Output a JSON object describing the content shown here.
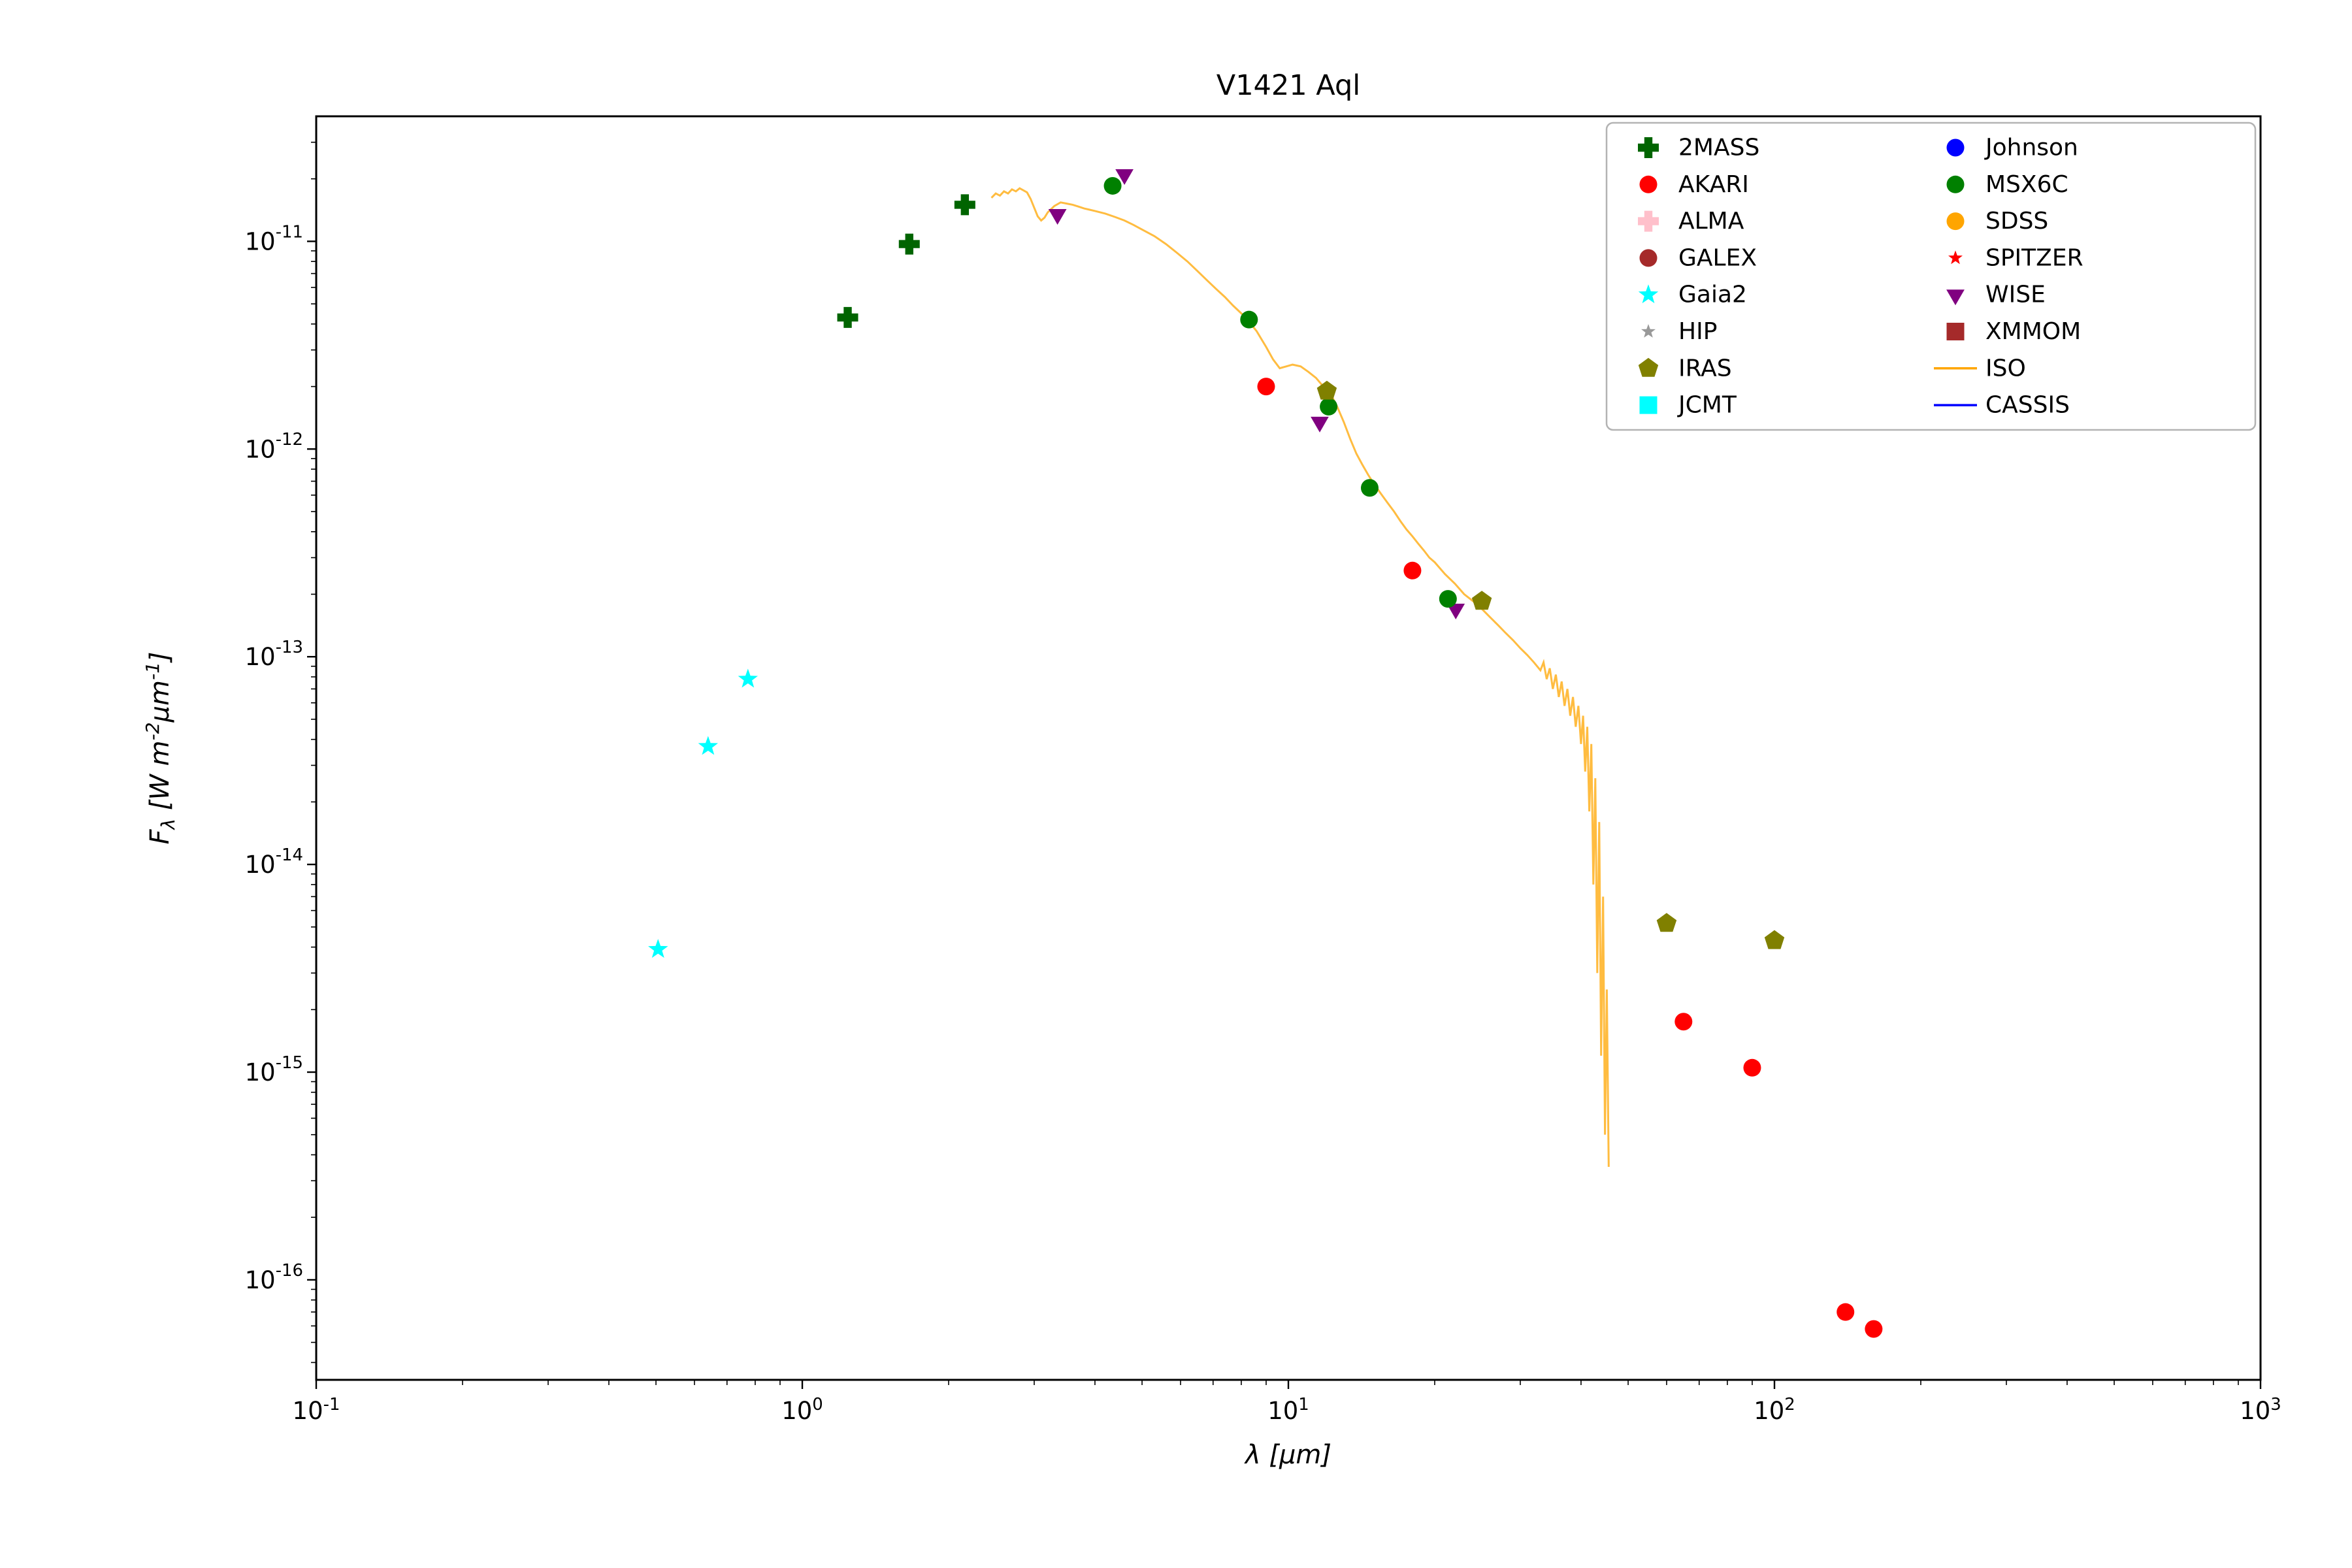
{
  "page": {
    "background": "#ffffff"
  },
  "chart_data": {
    "type": "scatter",
    "title": "V1421 Aql",
    "xlabel": "λ [μm]",
    "ylabel": "F_{λ} [W m^{-2}μm^{-1}]",
    "xscale": "log",
    "yscale": "log",
    "xlim": [
      0.1,
      1000
    ],
    "ylim": [
      3.3e-17,
      4e-11
    ],
    "grid": false,
    "x_ticks": [
      {
        "value": 0.1,
        "label": "10^{-1}"
      },
      {
        "value": 1,
        "label": "10^{0}"
      },
      {
        "value": 10,
        "label": "10^{1}"
      },
      {
        "value": 100,
        "label": "10^{2}"
      },
      {
        "value": 1000,
        "label": "10^{3}"
      }
    ],
    "y_ticks": [
      {
        "value": 1e-16,
        "label": "10^{-16}"
      },
      {
        "value": 1e-15,
        "label": "10^{-15}"
      },
      {
        "value": 1e-14,
        "label": "10^{-14}"
      },
      {
        "value": 1e-13,
        "label": "10^{-13}"
      },
      {
        "value": 1e-12,
        "label": "10^{-12}"
      },
      {
        "value": 1e-11,
        "label": "10^{-11}"
      }
    ],
    "legend": {
      "position": "upper right",
      "ncol": 2,
      "entries": [
        {
          "label": "2MASS",
          "marker": "plus",
          "color": "#006400",
          "scale": 1
        },
        {
          "label": "AKARI",
          "marker": "circle",
          "color": "#ff0000",
          "scale": 1
        },
        {
          "label": "ALMA",
          "marker": "plus",
          "color": "#ffc0cb",
          "scale": 1
        },
        {
          "label": "GALEX",
          "marker": "circle",
          "color": "#a52a2a",
          "scale": 1
        },
        {
          "label": "Gaia2",
          "marker": "star",
          "color": "#00ffff",
          "scale": 1
        },
        {
          "label": "HIP",
          "marker": "star",
          "color": "#999999",
          "scale": 0.72
        },
        {
          "label": "IRAS",
          "marker": "pentagon",
          "color": "#808000",
          "scale": 1
        },
        {
          "label": "JCMT",
          "marker": "square",
          "color": "#00ffff",
          "scale": 1
        },
        {
          "label": "Johnson",
          "marker": "circle",
          "color": "#0000ff",
          "scale": 1
        },
        {
          "label": "MSX6C",
          "marker": "circle",
          "color": "#008000",
          "scale": 1
        },
        {
          "label": "SDSS",
          "marker": "circle",
          "color": "#ffa500",
          "scale": 1
        },
        {
          "label": "SPITZER",
          "marker": "star",
          "color": "#ff0000",
          "scale": 0.72
        },
        {
          "label": "WISE",
          "marker": "triangle-down",
          "color": "#800080",
          "scale": 1
        },
        {
          "label": "XMMOM",
          "marker": "square",
          "color": "#a52a2a",
          "scale": 1
        },
        {
          "label": "ISO",
          "marker": "line",
          "color": "#ffa500",
          "scale": 1
        },
        {
          "label": "CASSIS",
          "marker": "line",
          "color": "#0000ff",
          "scale": 1
        }
      ]
    },
    "series": [
      {
        "name": "ISO",
        "kind": "line",
        "marker": "line",
        "color": "#ffa500",
        "opacity": 0.75,
        "points": [
          [
            2.45,
            1.62e-11
          ],
          [
            2.5,
            1.7e-11
          ],
          [
            2.55,
            1.66e-11
          ],
          [
            2.6,
            1.74e-11
          ],
          [
            2.65,
            1.7e-11
          ],
          [
            2.7,
            1.78e-11
          ],
          [
            2.75,
            1.74e-11
          ],
          [
            2.8,
            1.8e-11
          ],
          [
            2.85,
            1.76e-11
          ],
          [
            2.9,
            1.72e-11
          ],
          [
            2.95,
            1.6e-11
          ],
          [
            3.0,
            1.45e-11
          ],
          [
            3.05,
            1.32e-11
          ],
          [
            3.1,
            1.26e-11
          ],
          [
            3.15,
            1.3e-11
          ],
          [
            3.2,
            1.38e-11
          ],
          [
            3.3,
            1.48e-11
          ],
          [
            3.4,
            1.54e-11
          ],
          [
            3.5,
            1.52e-11
          ],
          [
            3.6,
            1.5e-11
          ],
          [
            3.7,
            1.47e-11
          ],
          [
            3.8,
            1.44e-11
          ],
          [
            3.9,
            1.42e-11
          ],
          [
            4.0,
            1.4e-11
          ],
          [
            4.2,
            1.36e-11
          ],
          [
            4.4,
            1.31e-11
          ],
          [
            4.6,
            1.26e-11
          ],
          [
            4.8,
            1.2e-11
          ],
          [
            5.0,
            1.14e-11
          ],
          [
            5.3,
            1.06e-11
          ],
          [
            5.6,
            9.7e-12
          ],
          [
            5.9,
            8.8e-12
          ],
          [
            6.2,
            8e-12
          ],
          [
            6.5,
            7.2e-12
          ],
          [
            6.8,
            6.5e-12
          ],
          [
            7.1,
            5.9e-12
          ],
          [
            7.4,
            5.4e-12
          ],
          [
            7.7,
            4.9e-12
          ],
          [
            8.0,
            4.5e-12
          ],
          [
            8.3,
            4.1e-12
          ],
          [
            8.6,
            3.7e-12
          ],
          [
            9.0,
            3.1e-12
          ],
          [
            9.3,
            2.7e-12
          ],
          [
            9.6,
            2.45e-12
          ],
          [
            9.9,
            2.5e-12
          ],
          [
            10.2,
            2.55e-12
          ],
          [
            10.6,
            2.5e-12
          ],
          [
            11.0,
            2.35e-12
          ],
          [
            11.4,
            2.2e-12
          ],
          [
            11.8,
            2e-12
          ],
          [
            12.2,
            1.85e-12
          ],
          [
            12.6,
            1.6e-12
          ],
          [
            13.0,
            1.35e-12
          ],
          [
            13.4,
            1.12e-12
          ],
          [
            13.8,
            9.5e-13
          ],
          [
            14.2,
            8.4e-13
          ],
          [
            14.6,
            7.5e-13
          ],
          [
            15.0,
            6.8e-13
          ],
          [
            15.5,
            6.1e-13
          ],
          [
            16.0,
            5.5e-13
          ],
          [
            16.5,
            5e-13
          ],
          [
            17.0,
            4.5e-13
          ],
          [
            17.5,
            4.1e-13
          ],
          [
            18.0,
            3.8e-13
          ],
          [
            18.5,
            3.5e-13
          ],
          [
            19.0,
            3.25e-13
          ],
          [
            19.5,
            3e-13
          ],
          [
            20.0,
            2.85e-13
          ],
          [
            21.0,
            2.5e-13
          ],
          [
            22.0,
            2.25e-13
          ],
          [
            23.0,
            2e-13
          ],
          [
            24.0,
            1.85e-13
          ],
          [
            25.0,
            1.7e-13
          ],
          [
            26.0,
            1.55e-13
          ],
          [
            27.0,
            1.42e-13
          ],
          [
            28.0,
            1.3e-13
          ],
          [
            29.0,
            1.2e-13
          ],
          [
            30.0,
            1.1e-13
          ],
          [
            31.0,
            1.02e-13
          ],
          [
            32.0,
            9.4e-14
          ],
          [
            33.0,
            8.6e-14
          ],
          [
            33.5,
            9.4e-14
          ],
          [
            34.0,
            7.8e-14
          ],
          [
            34.5,
            8.8e-14
          ],
          [
            35.0,
            7e-14
          ],
          [
            35.5,
            8.2e-14
          ],
          [
            36.0,
            6.4e-14
          ],
          [
            36.5,
            7.6e-14
          ],
          [
            37.0,
            5.8e-14
          ],
          [
            37.5,
            7e-14
          ],
          [
            38.0,
            5.2e-14
          ],
          [
            38.5,
            6.4e-14
          ],
          [
            39.0,
            4.6e-14
          ],
          [
            39.5,
            5.8e-14
          ],
          [
            40.0,
            3.8e-14
          ],
          [
            40.4,
            5.2e-14
          ],
          [
            40.8,
            2.8e-14
          ],
          [
            41.2,
            4.6e-14
          ],
          [
            41.6,
            1.8e-14
          ],
          [
            42.0,
            3.8e-14
          ],
          [
            42.4,
            8e-15
          ],
          [
            42.8,
            2.6e-14
          ],
          [
            43.2,
            3e-15
          ],
          [
            43.6,
            1.6e-14
          ],
          [
            44.0,
            1.2e-15
          ],
          [
            44.4,
            7e-15
          ],
          [
            44.8,
            5e-16
          ],
          [
            45.2,
            2.5e-15
          ],
          [
            45.6,
            3.5e-16
          ]
        ]
      },
      {
        "name": "2MASS",
        "kind": "scatter",
        "marker": "plus",
        "color": "#006400",
        "points": [
          [
            1.24,
            4.3e-12
          ],
          [
            1.66,
            9.7e-12
          ],
          [
            2.16,
            1.5e-11
          ]
        ]
      },
      {
        "name": "Gaia2",
        "kind": "scatter",
        "marker": "star",
        "color": "#00ffff",
        "points": [
          [
            0.505,
            3.9e-15
          ],
          [
            0.64,
            3.7e-14
          ],
          [
            0.773,
            7.8e-14
          ]
        ]
      },
      {
        "name": "WISE",
        "kind": "scatter",
        "marker": "triangle-down",
        "color": "#800080",
        "points": [
          [
            3.35,
            1.35e-11
          ],
          [
            4.6,
            2.1e-11
          ],
          [
            11.6,
            1.35e-12
          ],
          [
            22.1,
            1.7e-13
          ]
        ]
      },
      {
        "name": "MSX6C",
        "kind": "scatter",
        "marker": "circle",
        "color": "#008000",
        "points": [
          [
            4.35,
            1.85e-11
          ],
          [
            8.3,
            4.2e-12
          ],
          [
            12.1,
            1.6e-12
          ],
          [
            14.7,
            6.5e-13
          ],
          [
            21.3,
            1.9e-13
          ]
        ]
      },
      {
        "name": "IRAS",
        "kind": "scatter",
        "marker": "pentagon",
        "color": "#808000",
        "points": [
          [
            12.0,
            1.9e-12
          ],
          [
            25.0,
            1.85e-13
          ],
          [
            60.0,
            5.2e-15
          ],
          [
            100.0,
            4.3e-15
          ]
        ]
      },
      {
        "name": "AKARI",
        "kind": "scatter",
        "marker": "circle",
        "color": "#ff0000",
        "points": [
          [
            9.0,
            2e-12
          ],
          [
            18.0,
            2.6e-13
          ],
          [
            65.0,
            1.75e-15
          ],
          [
            90.0,
            1.05e-15
          ],
          [
            140.0,
            7e-17
          ],
          [
            160.0,
            5.8e-17
          ]
        ]
      }
    ]
  }
}
